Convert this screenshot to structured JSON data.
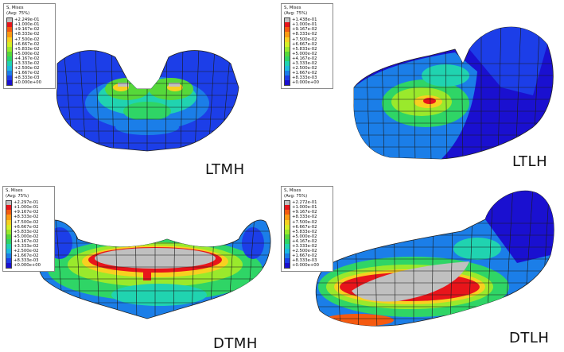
{
  "panels": [
    {
      "id": "ltmh",
      "label": "LTMH",
      "legend": {
        "title": "S, Mises",
        "avg": "(Avg: 75%)",
        "values": [
          "+2.249e-01",
          "+1.000e-01",
          "+9.167e-02",
          "+8.333e-02",
          "+7.500e-02",
          "+6.667e-02",
          "+5.833e-02",
          "+5.000e-02",
          "+4.167e-02",
          "+3.333e-02",
          "+2.500e-02",
          "+1.667e-02",
          "+8.333e-03",
          "+0.000e+00"
        ]
      }
    },
    {
      "id": "ltlh",
      "label": "LTLH",
      "legend": {
        "title": "S, Mises",
        "avg": "(Avg: 75%)",
        "values": [
          "+1.438e-01",
          "+1.000e-01",
          "+9.167e-02",
          "+8.333e-02",
          "+7.500e-02",
          "+6.667e-02",
          "+5.833e-02",
          "+5.000e-02",
          "+4.167e-02",
          "+3.333e-02",
          "+2.500e-02",
          "+1.667e-02",
          "+8.333e-03",
          "+0.000e+00"
        ]
      }
    },
    {
      "id": "dtmh",
      "label": "DTMH",
      "legend": {
        "title": "S, Mises",
        "avg": "(Avg: 75%)",
        "values": [
          "+2.297e-01",
          "+1.000e-01",
          "+9.167e-02",
          "+8.333e-02",
          "+7.500e-02",
          "+6.667e-02",
          "+5.833e-02",
          "+5.000e-02",
          "+4.167e-02",
          "+3.333e-02",
          "+2.500e-02",
          "+1.667e-02",
          "+8.333e-03",
          "+0.000e+00"
        ]
      }
    },
    {
      "id": "dtlh",
      "label": "DTLH",
      "legend": {
        "title": "S, Mises",
        "avg": "(Avg: 75%)",
        "values": [
          "+2.272e-01",
          "+1.000e-01",
          "+9.167e-02",
          "+8.333e-02",
          "+7.500e-02",
          "+6.667e-02",
          "+5.833e-02",
          "+5.000e-02",
          "+4.167e-02",
          "+3.333e-02",
          "+2.500e-02",
          "+1.667e-02",
          "+8.333e-03",
          "+0.000e+00"
        ]
      }
    }
  ],
  "colormap": [
    "#c0c0c0",
    "#e8151b",
    "#f55a10",
    "#fb9a12",
    "#f8d020",
    "#d6ee25",
    "#9ae92c",
    "#56d83a",
    "#2fd566",
    "#20d3b0",
    "#1ebae0",
    "#1b7ee8",
    "#1c3ee8",
    "#1a10d0"
  ]
}
